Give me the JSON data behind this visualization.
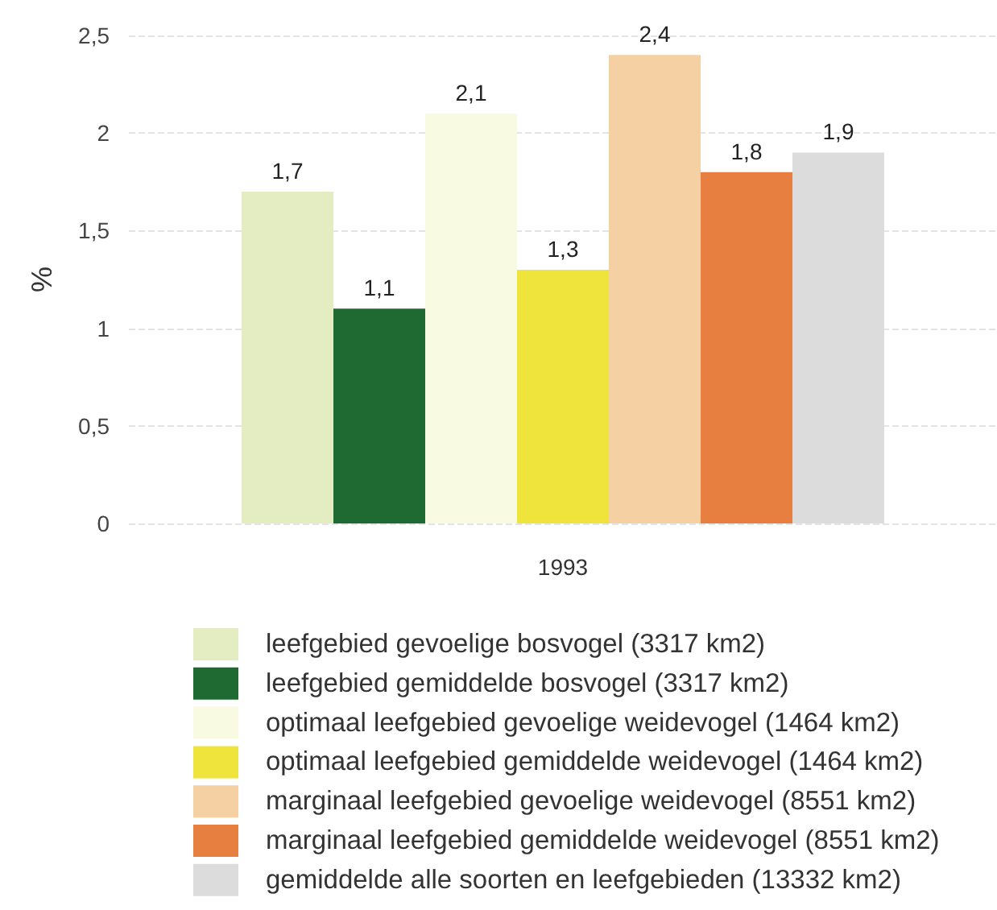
{
  "chart_data": {
    "type": "bar",
    "ylabel": "%",
    "categories": [
      "1993"
    ],
    "series": [
      {
        "name": "leefgebied gevoelige bosvogel (3317 km2)",
        "color": "#e4ecc2",
        "values": [
          1.7
        ],
        "value_labels": [
          "1,7"
        ]
      },
      {
        "name": "leefgebied gemiddelde bosvogel (3317 km2)",
        "color": "#1f6a32",
        "values": [
          1.1
        ],
        "value_labels": [
          "1,1"
        ]
      },
      {
        "name": "optimaal leefgebied gevoelige weidevogel (1464 km2)",
        "color": "#f9fae2",
        "values": [
          2.1
        ],
        "value_labels": [
          "2,1"
        ]
      },
      {
        "name": "optimaal leefgebied gemiddelde weidevogel (1464 km2)",
        "color": "#efe43c",
        "values": [
          1.3
        ],
        "value_labels": [
          "1,3"
        ]
      },
      {
        "name": "marginaal leefgebied gevoelige weidevogel (8551 km2)",
        "color": "#f5d0a2",
        "values": [
          2.4
        ],
        "value_labels": [
          "2,4"
        ]
      },
      {
        "name": "marginaal leefgebied gemiddelde weidevogel (8551 km2)",
        "color": "#e67f40",
        "values": [
          1.8
        ],
        "value_labels": [
          "1,8"
        ]
      },
      {
        "name": "gemiddelde alle soorten en leefgebieden (13332 km2)",
        "color": "#dcdcdc",
        "values": [
          1.9
        ],
        "value_labels": [
          "1,9"
        ]
      }
    ],
    "ylim": [
      0,
      2.5
    ],
    "yticks": [
      0,
      {
        "value": 0.5,
        "label": "0,5"
      },
      1,
      {
        "value": 1.5,
        "label": "1,5"
      },
      2,
      {
        "value": 2.5,
        "label": "2,5"
      }
    ],
    "grid": "y",
    "legend": "bottom"
  }
}
